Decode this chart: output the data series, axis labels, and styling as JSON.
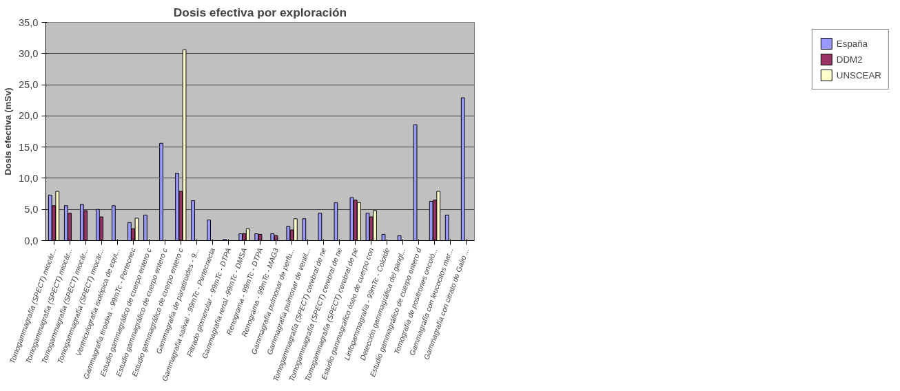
{
  "chart_data": {
    "type": "bar",
    "title": "Dosis efectiva por exploración",
    "ylabel": "Dosis efectiva (mSv)",
    "categories": [
      "Tomogammagrafía (SPECT) miocár...",
      "Tomogammagrafía (SPECT) miocár...",
      "Tomogammagrafía (SPECT) miocár...",
      "Tomogammagrafía (SPECT) miocár...",
      "Ventriculografía isotópica de equi...",
      "Gammagrafía tiroidea - 99mTc - Pertecnec",
      "Estudio gammagráfico de cuerpo entero c",
      "Estudio gammagráfico de cuerpo entero c",
      "Estudio gammagráfico de cuerpo entero c",
      "Gammagrafía de paratiroides - 9...",
      "Gammagrafía salival - 99mTc - Pertecnecta",
      "Filtrado glomerular - 99mTc - DTPA",
      "Gammagrafía renal -99mTc - DMSA",
      "Renograma - 99mTc - DTPA",
      "Renograma - 99mTc - MAG3",
      "Gammagrafía pulmonar de perfu...",
      "Gammagrafía pulmonar de ventil...",
      "Tomogammagrafía (SPECT) cerebral de ne",
      "Tomogammagrafía (SPECT) cerebral de ne",
      "Tomogammagrafía (SPECT) cerebral de pe",
      "Estudio gammagrafico óseo de cuerpo con",
      "Linfogammagrafía - 99mTc - Coloide",
      "Detección gammagráfica del gangl...",
      "Estudio gammagráfico de cuerpo entero d",
      "Tomografía de positrones oncoló...",
      "Gammagrafía con leucocitos mar...",
      "Gammagrafía con citrato de Galio ..."
    ],
    "series": [
      {
        "name": "España",
        "color": "#9999ff",
        "values": [
          7.3,
          5.6,
          5.8,
          5.0,
          5.6,
          2.9,
          4.1,
          15.6,
          10.8,
          6.4,
          3.3,
          0.2,
          1.1,
          1.1,
          1.1,
          2.3,
          3.5,
          4.4,
          6.1,
          6.9,
          4.4,
          1.0,
          0.8,
          18.6,
          6.3,
          4.1,
          22.9
        ]
      },
      {
        "name": "DDM2",
        "color": "#993366",
        "values": [
          5.6,
          4.4,
          4.8,
          3.8,
          null,
          1.9,
          null,
          null,
          7.9,
          null,
          null,
          null,
          1.1,
          1.0,
          0.8,
          1.7,
          null,
          null,
          null,
          6.5,
          3.8,
          null,
          null,
          null,
          6.5,
          null,
          null
        ]
      },
      {
        "name": "UNSCEAR",
        "color": "#ffffcc",
        "values": [
          7.9,
          null,
          null,
          null,
          null,
          3.6,
          null,
          null,
          30.6,
          null,
          null,
          null,
          1.9,
          null,
          null,
          3.5,
          null,
          null,
          null,
          6.1,
          4.8,
          null,
          null,
          null,
          7.9,
          null,
          null
        ]
      }
    ],
    "ylim": [
      0,
      35
    ],
    "yticks": [
      {
        "value": 0,
        "label": "0,0"
      },
      {
        "value": 5,
        "label": "5,0"
      },
      {
        "value": 10,
        "label": "10,0"
      },
      {
        "value": 15,
        "label": "15,0"
      },
      {
        "value": 20,
        "label": "20,0"
      },
      {
        "value": 25,
        "label": "25,0"
      },
      {
        "value": 30,
        "label": "30,0"
      },
      {
        "value": 35,
        "label": "35,0"
      }
    ],
    "grid": "y",
    "legend": "right"
  }
}
